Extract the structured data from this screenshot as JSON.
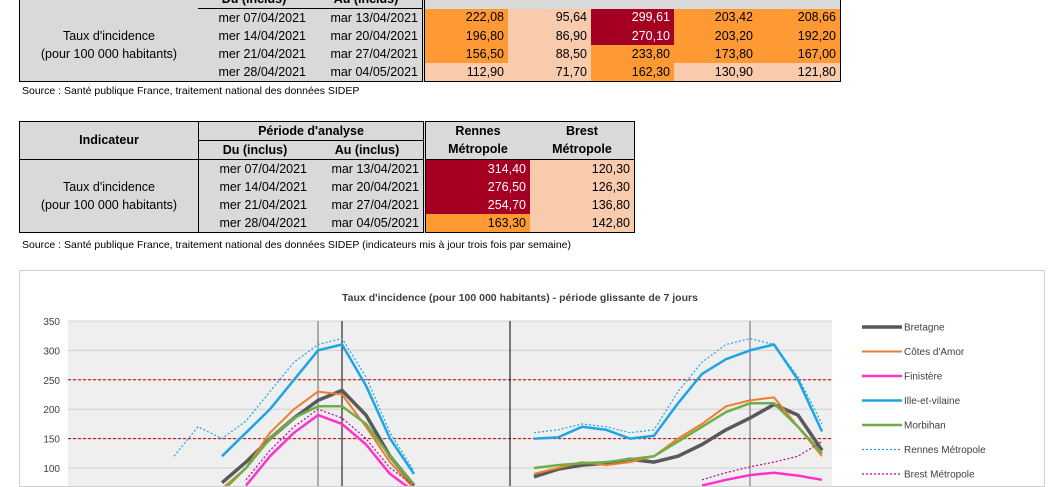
{
  "table1": {
    "header_top": [
      "Du (inclus)",
      "Au (inclus)"
    ],
    "indicator_label_line1": "Taux d'incidence",
    "indicator_label_line2": "(pour 100 000 habitants)",
    "rows": [
      {
        "from": "mer 07/04/2021",
        "to": "mar 13/04/2021",
        "values": [
          "222,08",
          "95,64",
          "299,61",
          "203,42",
          "208,66"
        ],
        "colors": [
          "#ff9933",
          "#f8cbad",
          "#a50021",
          "#ff9933",
          "#ff9933"
        ]
      },
      {
        "from": "mer 14/04/2021",
        "to": "mar 20/04/2021",
        "values": [
          "196,80",
          "86,90",
          "270,10",
          "203,20",
          "192,20"
        ],
        "colors": [
          "#ff9933",
          "#f8cbad",
          "#a50021",
          "#ff9933",
          "#ff9933"
        ]
      },
      {
        "from": "mer 21/04/2021",
        "to": "mar 27/04/2021",
        "values": [
          "156,50",
          "88,50",
          "233,80",
          "173,80",
          "167,00"
        ],
        "colors": [
          "#ff9933",
          "#f8cbad",
          "#ff9933",
          "#ff9933",
          "#ff9933"
        ]
      },
      {
        "from": "mer 28/04/2021",
        "to": "mar 04/05/2021",
        "values": [
          "112,90",
          "71,70",
          "162,30",
          "130,90",
          "121,80"
        ],
        "colors": [
          "#f8cbad",
          "#f8cbad",
          "#ff9933",
          "#f8cbad",
          "#f8cbad"
        ]
      }
    ],
    "source": "Source  : Santé publique France, traitement national des données SIDEP"
  },
  "table2": {
    "indicateur": "Indicateur",
    "periode": "Période d'analyse",
    "du": "Du (inclus)",
    "au": "Au (inclus)",
    "col1_line1": "Rennes",
    "col1_line2": "Métropole",
    "col2_line1": "Brest",
    "col2_line2": "Métropole",
    "indicator_label_line1": "Taux d'incidence",
    "indicator_label_line2": "(pour 100 000 habitants)",
    "rows": [
      {
        "from": "mer 07/04/2021",
        "to": "mar 13/04/2021",
        "values": [
          "314,40",
          "120,30"
        ],
        "colors": [
          "#a50021",
          "#f8cbad"
        ]
      },
      {
        "from": "mer 14/04/2021",
        "to": "mar 20/04/2021",
        "values": [
          "276,50",
          "126,30"
        ],
        "colors": [
          "#a50021",
          "#f8cbad"
        ]
      },
      {
        "from": "mer 21/04/2021",
        "to": "mar 27/04/2021",
        "values": [
          "254,70",
          "136,80"
        ],
        "colors": [
          "#a50021",
          "#f8cbad"
        ]
      },
      {
        "from": "mer 28/04/2021",
        "to": "mar 04/05/2021",
        "values": [
          "163,30",
          "142,80"
        ],
        "colors": [
          "#ff9933",
          "#f8cbad"
        ]
      }
    ],
    "source": "Source  : Santé publique France, traitement national des données SIDEP (indicateurs mis à jour trois fois par semaine)"
  },
  "chart_data": {
    "type": "line",
    "title": "Taux d'incidence (pour 100 000 habitants) - période glissante de 7 jours",
    "xlabel": "",
    "ylabel": "",
    "ylim": [
      0,
      350
    ],
    "yticks": [
      100,
      150,
      200,
      250,
      300,
      350
    ],
    "grid": true,
    "legend_position": "right",
    "reference_lines": [
      150,
      250
    ],
    "x": [
      0,
      10,
      20,
      30,
      40,
      50,
      60,
      70,
      80,
      90,
      100,
      110,
      120,
      130,
      140,
      150,
      160,
      170,
      180,
      190,
      200,
      210,
      220,
      230,
      240,
      250,
      260,
      270,
      280,
      290,
      300,
      310
    ],
    "series": [
      {
        "name": "Bretagne",
        "color": "#595959",
        "width": 3.5,
        "dash": "",
        "values": [
          null,
          null,
          null,
          null,
          null,
          null,
          75,
          110,
          150,
          185,
          215,
          232,
          190,
          120,
          70,
          null,
          null,
          null,
          null,
          85,
          98,
          105,
          108,
          115,
          110,
          120,
          140,
          165,
          185,
          208,
          190,
          130
        ]
      },
      {
        "name": "Côtes d'Amor",
        "color": "#ed7d31",
        "width": 2,
        "dash": "",
        "values": [
          null,
          null,
          null,
          null,
          null,
          null,
          65,
          100,
          160,
          200,
          230,
          225,
          170,
          110,
          65,
          null,
          null,
          null,
          null,
          90,
          100,
          110,
          105,
          110,
          120,
          150,
          175,
          205,
          215,
          220,
          170,
          120
        ]
      },
      {
        "name": "Finistère",
        "color": "#ff33cc",
        "width": 2.5,
        "dash": "",
        "values": [
          null,
          null,
          null,
          null,
          null,
          null,
          null,
          70,
          120,
          160,
          190,
          175,
          140,
          90,
          60,
          null,
          null,
          null,
          null,
          null,
          null,
          null,
          null,
          null,
          null,
          null,
          70,
          80,
          88,
          92,
          87,
          80
        ]
      },
      {
        "name": "Ille-et-vilaine",
        "color": "#1fa4e4",
        "width": 2.5,
        "dash": "",
        "values": [
          null,
          null,
          null,
          null,
          null,
          null,
          120,
          160,
          200,
          250,
          300,
          310,
          240,
          150,
          90,
          null,
          null,
          null,
          null,
          150,
          152,
          170,
          165,
          150,
          155,
          210,
          260,
          285,
          300,
          310,
          250,
          162
        ]
      },
      {
        "name": "Morbihan",
        "color": "#70ad47",
        "width": 2.5,
        "dash": "",
        "values": [
          null,
          null,
          null,
          null,
          null,
          null,
          60,
          100,
          150,
          185,
          205,
          205,
          175,
          120,
          70,
          null,
          null,
          null,
          null,
          100,
          105,
          108,
          110,
          115,
          120,
          145,
          170,
          195,
          210,
          210,
          170,
          125
        ]
      },
      {
        "name": "Rennes Métropole",
        "color": "#1fa4e4",
        "width": 1.2,
        "dash": "2,2",
        "values": [
          null,
          null,
          null,
          null,
          120,
          170,
          150,
          180,
          230,
          280,
          310,
          320,
          255,
          160,
          95,
          null,
          null,
          null,
          null,
          160,
          165,
          175,
          170,
          160,
          165,
          230,
          280,
          310,
          320,
          310,
          255,
          175
        ]
      },
      {
        "name": "Brest Métropole",
        "color": "#c00090",
        "width": 1.2,
        "dash": "2,2",
        "values": [
          null,
          null,
          null,
          null,
          null,
          null,
          null,
          80,
          130,
          170,
          200,
          185,
          150,
          100,
          70,
          null,
          null,
          null,
          null,
          null,
          null,
          null,
          null,
          null,
          null,
          null,
          80,
          92,
          102,
          110,
          120,
          145
        ]
      }
    ]
  }
}
